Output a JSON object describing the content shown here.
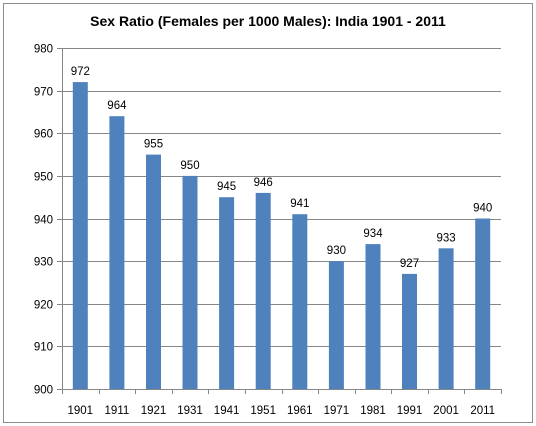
{
  "chart_data": {
    "type": "bar",
    "title": "Sex Ratio (Females per 1000 Males): India 1901 - 2011",
    "xlabel": "",
    "ylabel": "",
    "categories": [
      "1901",
      "1911",
      "1921",
      "1931",
      "1941",
      "1951",
      "1961",
      "1971",
      "1981",
      "1991",
      "2001",
      "2011"
    ],
    "values": [
      972,
      964,
      955,
      950,
      945,
      946,
      941,
      930,
      934,
      927,
      933,
      940
    ],
    "ylim": [
      900,
      980
    ],
    "yticks": [
      900,
      910,
      920,
      930,
      940,
      950,
      960,
      970,
      980
    ],
    "grid": true,
    "legend": "none",
    "bar_color": "#4F81BD",
    "grid_color": "#868686"
  }
}
